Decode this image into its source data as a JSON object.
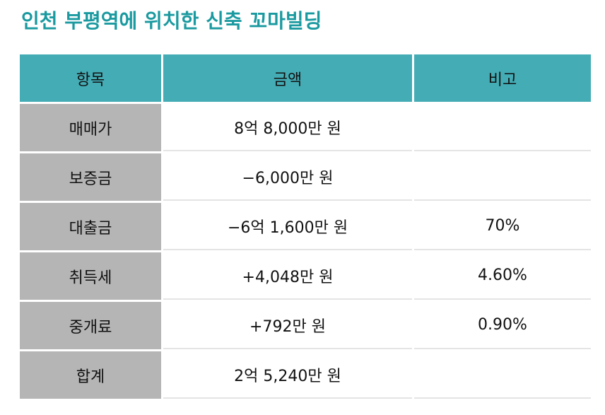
{
  "title": "인천 부평역에 위치한 신축 꼬마빌딩",
  "table": {
    "headers": [
      "항목",
      "금액",
      "비고"
    ],
    "rows": [
      {
        "item": "매매가",
        "amount": "8억 8,000만 원",
        "note": ""
      },
      {
        "item": "보증금",
        "amount": "−6,000만 원",
        "note": ""
      },
      {
        "item": "대출금",
        "amount": "−6억 1,600만 원",
        "note": "70%"
      },
      {
        "item": "취득세",
        "amount": "+4,048만 원",
        "note": "4.60%"
      },
      {
        "item": "중개료",
        "amount": "+792만 원",
        "note": "0.90%"
      },
      {
        "item": "합계",
        "amount": "2억 5,240만 원",
        "note": ""
      }
    ]
  },
  "colors": {
    "title": "#1a9aa0",
    "header_bg": "#44acb5",
    "label_bg": "#b5b5b5"
  }
}
